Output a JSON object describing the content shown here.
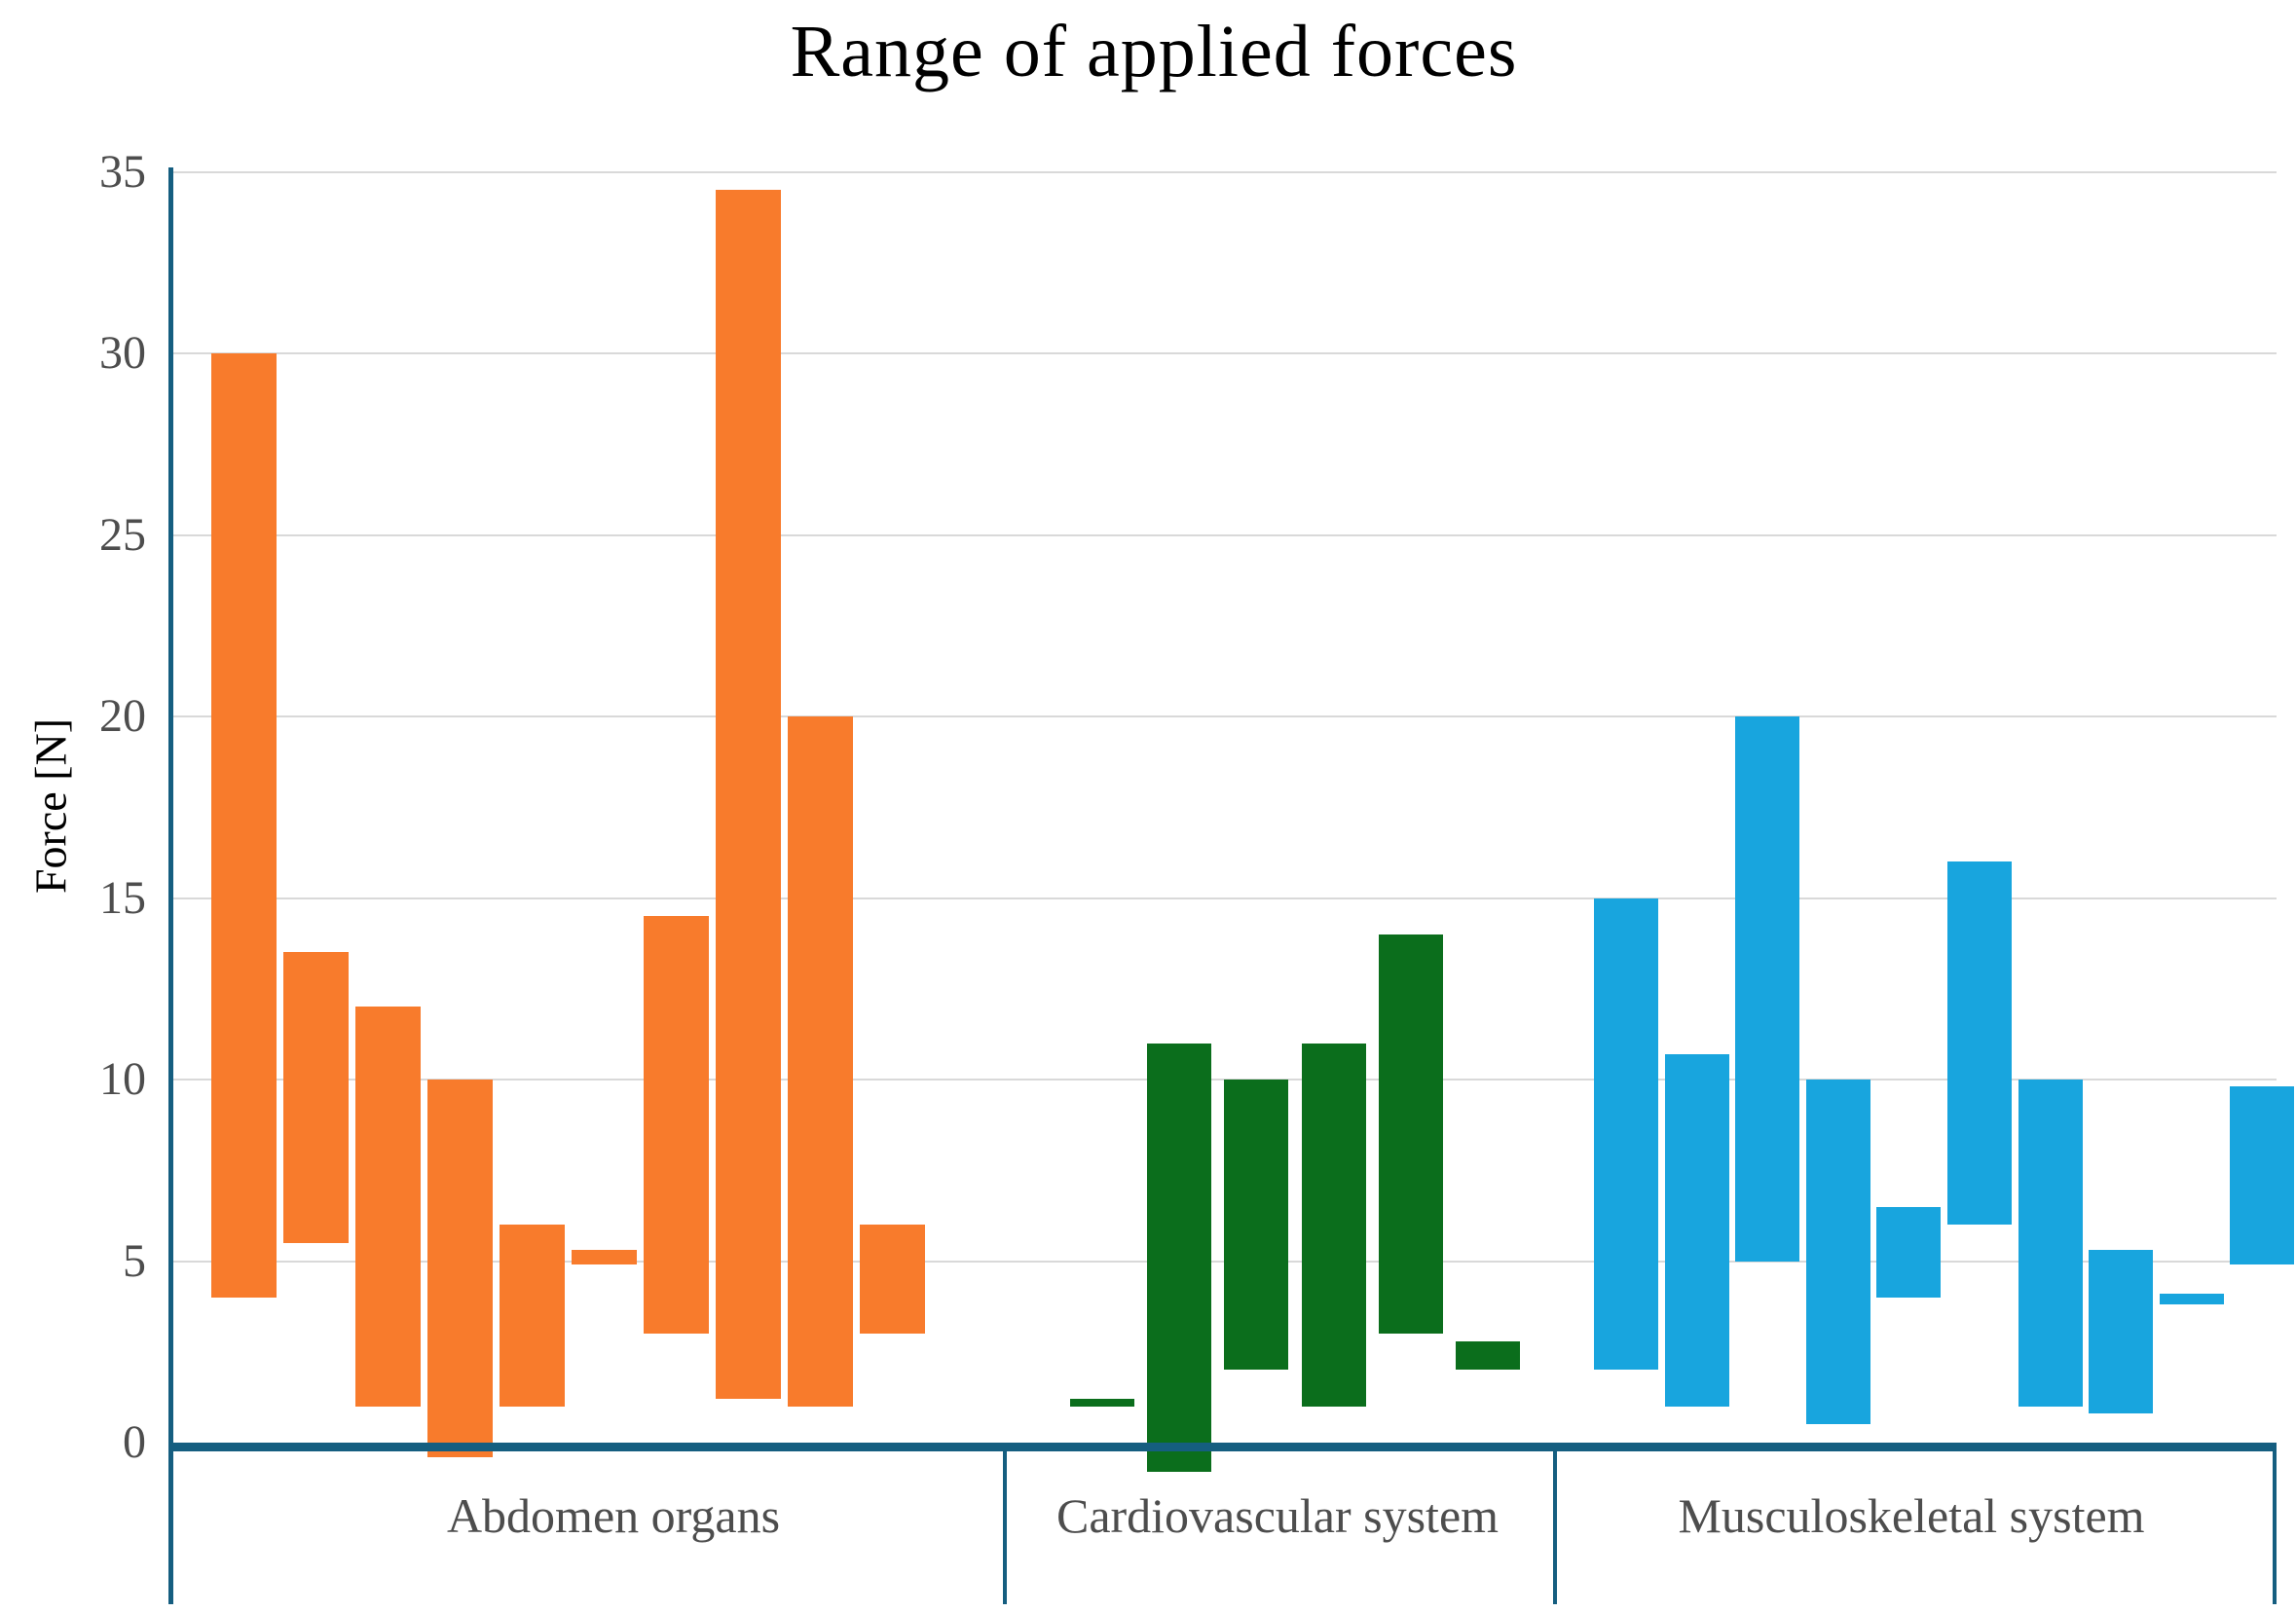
{
  "chart_data": {
    "type": "bar",
    "subtype": "floating-range-columns",
    "title": "Range of applied forces",
    "ylabel": "Force [N]",
    "ylim": [
      0,
      35
    ],
    "yticks": [
      0,
      5,
      10,
      15,
      20,
      25,
      30,
      35
    ],
    "ytick_interval": 5,
    "grid": "horizontal",
    "legend_position": "none",
    "value_unit": "N",
    "colors": {
      "axis_line": "#155E80",
      "gridline": "#D9D9D9",
      "text": "#4D4D4D",
      "background": "#FFFFFF"
    },
    "groups": [
      {
        "label": "Abdomen organs",
        "color": "#F87B2C",
        "bars_min_max": [
          [
            4,
            30
          ],
          [
            5.5,
            13.5
          ],
          [
            1,
            12
          ],
          [
            -0.4,
            10
          ],
          [
            1,
            6
          ],
          [
            4.9,
            5.3
          ],
          [
            3,
            14.5
          ],
          [
            1.2,
            34.5
          ],
          [
            1,
            20
          ],
          [
            3,
            6
          ]
        ]
      },
      {
        "label": "Cardiovascular system",
        "color": "#0B6E1C",
        "bars_min_max": [
          [
            1,
            1.2
          ],
          [
            -0.8,
            11
          ],
          [
            2,
            10
          ],
          [
            1,
            11
          ],
          [
            3,
            14
          ],
          [
            2,
            2.8
          ]
        ]
      },
      {
        "label": "Musculoskeletal system",
        "color": "#18A5DE",
        "bars_min_max": [
          [
            2,
            15
          ],
          [
            1,
            10.7
          ],
          [
            5,
            20
          ],
          [
            0.5,
            10
          ],
          [
            4,
            6.5
          ],
          [
            6,
            16
          ],
          [
            1,
            10
          ],
          [
            0.8,
            5.3
          ],
          [
            3.8,
            4.1
          ],
          [
            4.9,
            9.8
          ]
        ]
      }
    ]
  }
}
